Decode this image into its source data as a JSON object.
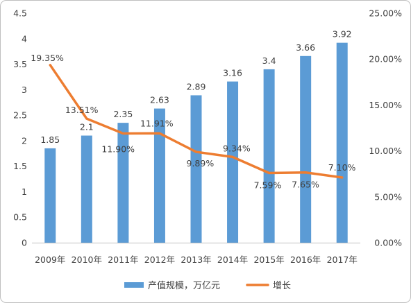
{
  "chart_data": {
    "type": "bar",
    "categories": [
      "2009年",
      "2010年",
      "2011年",
      "2012年",
      "2013年",
      "2014年",
      "2015年",
      "2016年",
      "2017年"
    ],
    "series": [
      {
        "name": "产值规模，万亿元",
        "type": "bar",
        "axis": "left",
        "color": "#5b9bd5",
        "values": [
          1.85,
          2.1,
          2.35,
          2.63,
          2.89,
          3.16,
          3.4,
          3.66,
          3.92
        ],
        "labels": [
          "1.85",
          "2.1",
          "2.35",
          "2.63",
          "2.89",
          "3.16",
          "3.4",
          "3.66",
          "3.92"
        ]
      },
      {
        "name": "增长",
        "type": "line",
        "axis": "right",
        "color": "#ed7d31",
        "values": [
          19.35,
          13.51,
          11.9,
          11.91,
          9.89,
          9.34,
          7.59,
          7.65,
          7.1
        ],
        "labels": [
          "19.35%",
          "13.51%",
          "11.90%",
          "11.91%",
          "9.89%",
          "9.34%",
          "7.59%",
          "7.65%",
          "7.10%"
        ]
      }
    ],
    "y_left": {
      "min": 0,
      "max": 4.5,
      "ticks": [
        0,
        0.5,
        1,
        1.5,
        2,
        2.5,
        3,
        3.5,
        4,
        4.5
      ],
      "tick_labels": [
        "0",
        "0.5",
        "1",
        "1.5",
        "2",
        "2.5",
        "3",
        "3.5",
        "4",
        "4.5"
      ]
    },
    "y_right": {
      "min": 0,
      "max": 25,
      "ticks": [
        0,
        5,
        10,
        15,
        20,
        25
      ],
      "tick_labels": [
        "0.00%",
        "5.00%",
        "10.00%",
        "15.00%",
        "20.00%",
        "25.00%"
      ]
    },
    "grid": false,
    "legend_position": "bottom"
  }
}
